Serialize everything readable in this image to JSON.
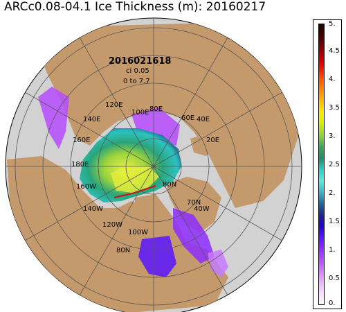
{
  "title": "ARCc0.08-04.1 Ice Thickness (m): 20160217",
  "annotation": {
    "date_stamp": "2016021618",
    "contour_interval": "ci  0.05",
    "range": "0 to 7.7"
  },
  "longitude_labels": [
    "120E",
    "100E",
    "80E",
    "60E",
    "40E",
    "20E",
    "140E",
    "160E",
    "180E",
    "160W",
    "140W",
    "120W",
    "100W",
    "80N",
    "80N",
    "70N",
    "40W"
  ],
  "colorbar": {
    "ticks": [
      "5.",
      "4.5",
      "4.",
      "3.5",
      "3.",
      "2.5",
      "2.",
      "1.5",
      "1.",
      "0.5",
      "0."
    ]
  },
  "colors": {
    "land": "#c49a6c",
    "ocean": "#d2d2d2",
    "grid": "#555555",
    "thin_ice": "#b64cff",
    "medium_ice": "#2ab3b8",
    "thick_ice": "#e8e84a"
  }
}
